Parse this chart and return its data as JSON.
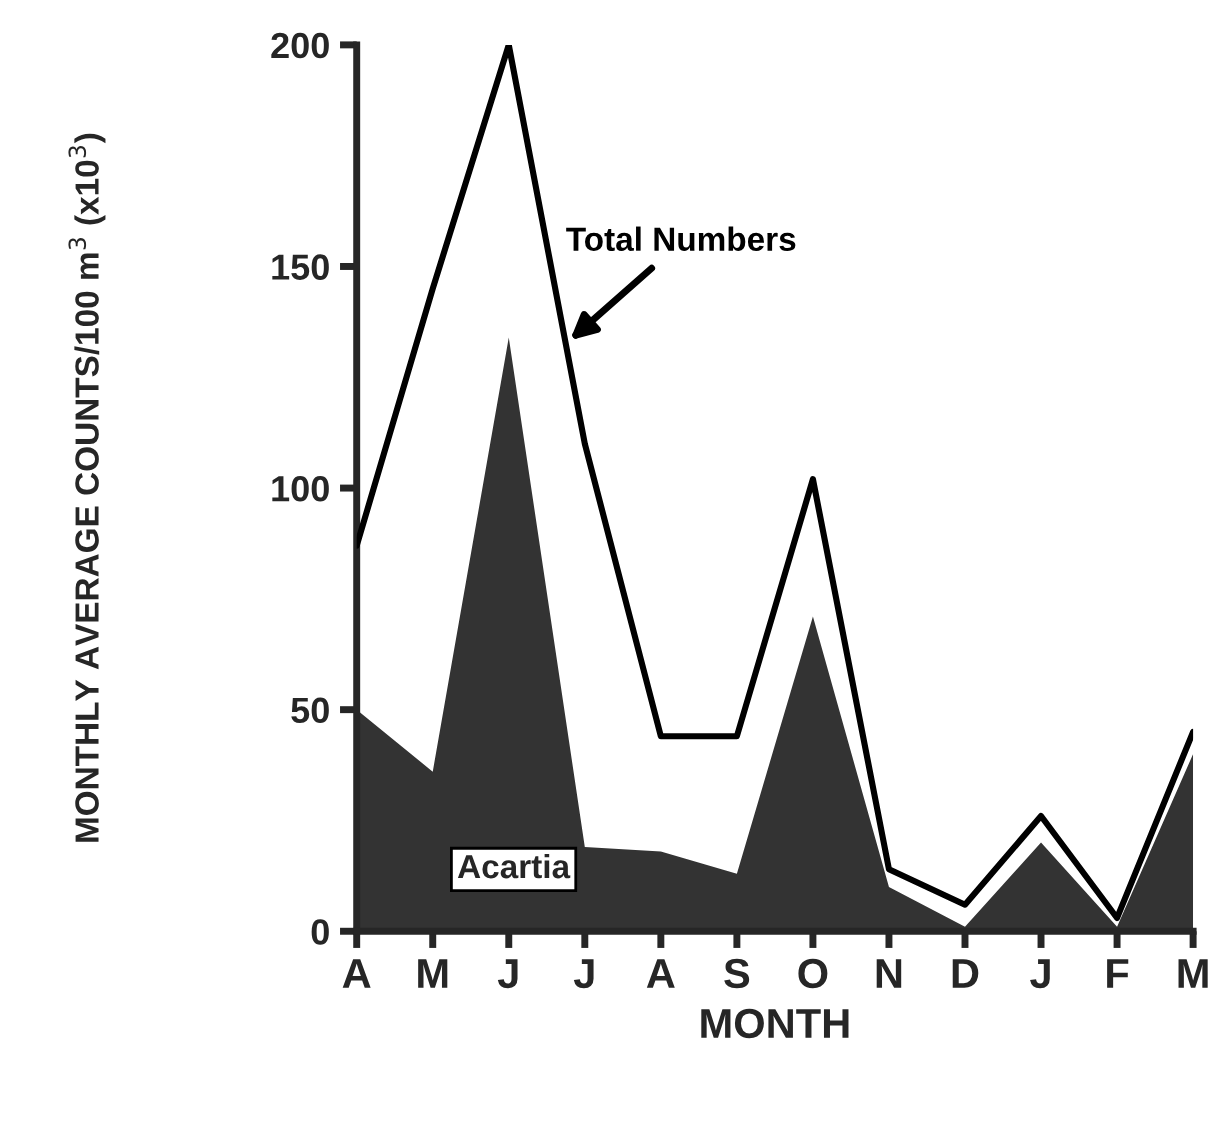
{
  "chart_data": {
    "type": "area",
    "xlabel": "MONTH",
    "ylabel": "MONTHLY AVERAGE COUNTS/100 m$^{3}$ (x10$^{3}$)",
    "categories": [
      "A",
      "M",
      "J",
      "J",
      "A",
      "S",
      "O",
      "N",
      "D",
      "J",
      "F",
      "M"
    ],
    "series": [
      {
        "name": "Acartia",
        "color": "#333333",
        "values": [
          50,
          36,
          134,
          19,
          18,
          13,
          71,
          10,
          1,
          20,
          1,
          40
        ]
      },
      {
        "name": "Total Numbers",
        "type": "line",
        "color": "#000000",
        "values": [
          87,
          145,
          200,
          110,
          44,
          44,
          102,
          14,
          6,
          26,
          3,
          45
        ]
      }
    ],
    "ylim": [
      0,
      200
    ],
    "yticks": [
      0,
      50,
      100,
      150,
      200
    ],
    "grid": false
  }
}
